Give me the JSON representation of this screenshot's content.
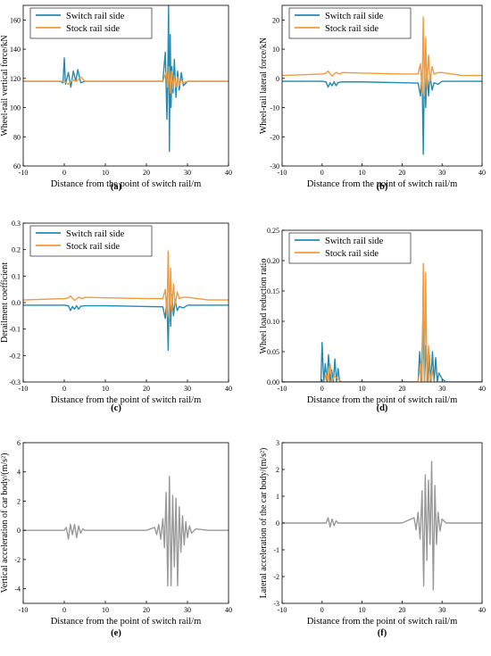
{
  "chart_data": [
    {
      "id": "a",
      "panel_label": "(a)",
      "type": "line",
      "xlabel": "Distance from the point of switch rail/m",
      "ylabel": "Wheel-rail vertical force/kN",
      "xlim": [
        -10,
        40
      ],
      "ylim": [
        60,
        170
      ],
      "xticks": [
        -10,
        0,
        10,
        20,
        30,
        40
      ],
      "yticks": [
        60,
        80,
        100,
        120,
        140,
        160
      ],
      "ytick_labels": [
        "60",
        "80",
        "100",
        "120",
        "140",
        "160"
      ],
      "legend": "top-left",
      "series": [
        {
          "name": "Switch rail side",
          "color": "#1f8bb5",
          "x": [
            -10,
            -1,
            -0.3,
            0,
            0.3,
            1,
            1.6,
            2.2,
            2.8,
            3.3,
            4,
            5,
            10,
            20,
            24,
            24.6,
            25,
            25.2,
            25.4,
            25.6,
            25.8,
            26,
            26.2,
            26.5,
            26.8,
            27.2,
            27.6,
            28,
            28.5,
            29,
            30,
            35,
            40
          ],
          "y": [
            118,
            118,
            117,
            134,
            116,
            124,
            114,
            125,
            118,
            126,
            117,
            118,
            118,
            118,
            118,
            138,
            92,
            120,
            170,
            70,
            150,
            100,
            128,
            110,
            133,
            107,
            125,
            112,
            124,
            115,
            118,
            118,
            118
          ]
        },
        {
          "name": "Stock rail side",
          "color": "#f39a3a",
          "x": [
            -10,
            0,
            1,
            2,
            3,
            4,
            5,
            10,
            20,
            24,
            24.8,
            25.2,
            25.5,
            25.8,
            26.1,
            26.4,
            26.8,
            27.2,
            27.6,
            28,
            28.5,
            29,
            30,
            35,
            40
          ],
          "y": [
            118,
            118,
            116,
            119,
            118,
            121,
            118,
            118,
            118,
            118,
            124,
            114,
            128,
            110,
            125,
            113,
            122,
            114,
            121,
            115,
            119,
            117,
            118,
            118,
            118
          ]
        }
      ]
    },
    {
      "id": "b",
      "panel_label": "(b)",
      "type": "line",
      "xlabel": "Distance from the point of switch rail/m",
      "ylabel": "Wheel-rail lateral force/kN",
      "xlim": [
        -10,
        40
      ],
      "ylim": [
        -30,
        25
      ],
      "xticks": [
        -10,
        0,
        10,
        20,
        30,
        40
      ],
      "yticks": [
        -30,
        -20,
        -10,
        0,
        10,
        20
      ],
      "ytick_labels": [
        "-30",
        "-20",
        "-10",
        "0",
        "10",
        "20"
      ],
      "legend": "top-left",
      "series": [
        {
          "name": "Switch rail side",
          "color": "#1f8bb5",
          "x": [
            -10,
            0,
            1,
            1.5,
            2,
            2.5,
            3,
            3.5,
            4,
            5,
            10,
            20,
            24,
            24.6,
            25,
            25.3,
            25.6,
            25.9,
            26.2,
            26.6,
            27,
            27.5,
            28,
            29,
            30,
            35,
            40
          ],
          "y": [
            -1,
            -1,
            -1.2,
            -3,
            -1.5,
            -2.5,
            -1.2,
            -2.5,
            -1.4,
            -1.2,
            -1.2,
            -1.5,
            -1.6,
            -6,
            2,
            -26,
            6,
            -10,
            3,
            -6,
            1,
            -4,
            -1.5,
            -2,
            -1,
            -1,
            -1
          ]
        },
        {
          "name": "Stock rail side",
          "color": "#f39a3a",
          "x": [
            -10,
            0,
            1,
            1.5,
            2,
            2.5,
            3.5,
            4.5,
            5,
            10,
            20,
            24,
            24.6,
            25,
            25.3,
            25.6,
            25.9,
            26.2,
            26.6,
            27,
            27.5,
            28,
            29,
            30,
            35,
            40
          ],
          "y": [
            1,
            1.5,
            1.8,
            2.5,
            1.6,
            0.8,
            2,
            1.5,
            2,
            1.8,
            1.5,
            1.5,
            5,
            -5,
            21,
            -6,
            14,
            -3,
            8,
            -1,
            4,
            1.5,
            2,
            2,
            1,
            1
          ]
        }
      ]
    },
    {
      "id": "c",
      "panel_label": "(c)",
      "type": "line",
      "xlabel": "Distance from the point of switch rail/m",
      "ylabel": "Derailment coefficient",
      "xlim": [
        -10,
        40
      ],
      "ylim": [
        -0.3,
        0.3
      ],
      "xticks": [
        -10,
        0,
        10,
        20,
        30,
        40
      ],
      "yticks": [
        -0.3,
        -0.2,
        -0.1,
        0,
        0.1,
        0.2,
        0.3
      ],
      "ytick_labels": [
        "-0.3",
        "-0.2",
        "-0.1",
        "0.0",
        "0.1",
        "0.2",
        "0.3"
      ],
      "legend": "top-left",
      "series": [
        {
          "name": "Switch rail side",
          "color": "#1f8bb5",
          "x": [
            -10,
            0,
            1,
            1.5,
            2,
            2.5,
            3,
            3.5,
            4,
            5,
            10,
            20,
            24,
            24.6,
            25,
            25.3,
            25.6,
            25.9,
            26.2,
            26.6,
            27,
            27.5,
            28,
            29,
            30,
            35,
            40
          ],
          "y": [
            -0.01,
            -0.01,
            -0.012,
            -0.03,
            -0.015,
            -0.025,
            -0.012,
            -0.025,
            -0.014,
            -0.012,
            -0.012,
            -0.015,
            -0.016,
            -0.06,
            0.02,
            -0.18,
            0.05,
            -0.09,
            0.03,
            -0.05,
            0.01,
            -0.03,
            -0.015,
            -0.02,
            -0.01,
            -0.01,
            -0.01
          ]
        },
        {
          "name": "Stock rail side",
          "color": "#f39a3a",
          "x": [
            -10,
            0,
            1,
            1.5,
            2,
            2.5,
            3.5,
            4.5,
            5,
            10,
            20,
            24,
            24.6,
            25,
            25.3,
            25.6,
            25.9,
            26.2,
            26.6,
            27,
            27.5,
            28,
            29,
            30,
            35,
            40
          ],
          "y": [
            0.01,
            0.015,
            0.018,
            0.025,
            0.016,
            0.008,
            0.02,
            0.015,
            0.02,
            0.018,
            0.015,
            0.015,
            0.05,
            -0.05,
            0.195,
            -0.06,
            0.13,
            -0.03,
            0.07,
            -0.01,
            0.04,
            0.015,
            0.02,
            0.02,
            0.01,
            0.01
          ]
        }
      ]
    },
    {
      "id": "d",
      "panel_label": "(d)",
      "type": "line",
      "xlabel": "Distance from the point of switch rail/m",
      "ylabel": "Wheel load reduction ratio",
      "xlim": [
        -10,
        40
      ],
      "ylim": [
        0,
        0.25
      ],
      "xticks": [
        -10,
        0,
        10,
        20,
        30,
        40
      ],
      "yticks": [
        0,
        0.05,
        0.1,
        0.15,
        0.2,
        0.25
      ],
      "ytick_labels": [
        "0.00",
        "0.05",
        "0.10",
        "0.15",
        "0.20",
        "0.25"
      ],
      "legend": "top-left",
      "series": [
        {
          "name": "Switch rail side",
          "color": "#1f8bb5",
          "x": [
            -10,
            -0.3,
            0,
            0.4,
            0.8,
            1.2,
            1.6,
            2,
            2.4,
            2.8,
            3.2,
            3.6,
            4,
            4.4,
            5,
            10,
            20,
            24,
            24.4,
            24.8,
            25.2,
            25.6,
            26,
            26.4,
            26.8,
            27.2,
            27.6,
            28,
            28.4,
            28.8,
            29.2,
            30,
            31,
            35,
            40
          ],
          "y": [
            0,
            0,
            0.065,
            0,
            0.03,
            0,
            0.045,
            0,
            0.02,
            0,
            0.038,
            0,
            0.022,
            0,
            0,
            0,
            0,
            0,
            0.05,
            0,
            0.1,
            0,
            0.06,
            0,
            0.045,
            0,
            0.05,
            0,
            0.04,
            0,
            0.015,
            0.005,
            0,
            0,
            0
          ]
        },
        {
          "name": "Stock rail side",
          "color": "#f39a3a",
          "x": [
            -10,
            0.5,
            1,
            1.5,
            2,
            2.5,
            3,
            5,
            10,
            20,
            24,
            24.6,
            25,
            25.3,
            25.6,
            25.9,
            26.2,
            26.6,
            27,
            27.5,
            28,
            30,
            35,
            40
          ],
          "y": [
            0,
            0,
            0.015,
            0,
            0.03,
            0,
            0.01,
            0,
            0,
            0,
            0,
            0.03,
            0,
            0.195,
            0,
            0.18,
            0,
            0.06,
            0,
            0.02,
            0,
            0,
            0,
            0
          ]
        }
      ]
    },
    {
      "id": "e",
      "panel_label": "(e)",
      "type": "line",
      "xlabel": "Distance from the point of switch rail/m",
      "ylabel": "Vertical acceleration of car body/(m/s²)",
      "xlim": [
        -10,
        40
      ],
      "ylim": [
        -5,
        6
      ],
      "xticks": [
        -10,
        0,
        10,
        20,
        30,
        40
      ],
      "yticks": [
        -4,
        -2,
        0,
        2,
        4,
        6
      ],
      "ytick_labels": [
        "-4",
        "-2",
        "0",
        "2",
        "4",
        "6"
      ],
      "series": [
        {
          "color": "#999999",
          "x": [
            -10,
            0,
            0.5,
            1,
            1.5,
            2,
            2.5,
            3,
            3.5,
            4,
            4.5,
            5,
            10,
            20,
            22,
            22.5,
            23,
            23.5,
            24,
            24.4,
            24.8,
            25.2,
            25.6,
            26,
            26.4,
            26.8,
            27.2,
            27.6,
            28,
            28.4,
            28.8,
            29.2,
            29.6,
            30,
            30.5,
            31,
            32,
            35,
            40
          ],
          "y": [
            0,
            0,
            0.2,
            -0.6,
            0.4,
            -0.3,
            0.4,
            -0.5,
            0.3,
            -0.2,
            0.1,
            0,
            0,
            0,
            0.2,
            -0.3,
            0.4,
            -0.6,
            0.8,
            -1.2,
            2.6,
            -3.8,
            3.7,
            -3.8,
            2.4,
            -2.5,
            2.2,
            -3.8,
            1.6,
            -1.5,
            1.0,
            -1.0,
            0.6,
            -0.5,
            0.3,
            -0.2,
            0.1,
            0,
            0
          ]
        }
      ]
    },
    {
      "id": "f",
      "panel_label": "(f)",
      "type": "line",
      "xlabel": "Distance from the point of switch rail/m",
      "ylabel": "Lateral acceleration of the car body/(m/s²)",
      "xlim": [
        -10,
        40
      ],
      "ylim": [
        -3,
        3
      ],
      "xticks": [
        -10,
        0,
        10,
        20,
        30,
        40
      ],
      "yticks": [
        -3,
        -2,
        -1,
        0,
        1,
        2,
        3
      ],
      "ytick_labels": [
        "-3",
        "-2",
        "-1",
        "0",
        "1",
        "2",
        "3"
      ],
      "series": [
        {
          "color": "#999999",
          "x": [
            -10,
            1,
            1.5,
            2,
            2.5,
            3,
            3.5,
            4,
            5,
            10,
            20,
            23,
            23.5,
            24,
            24.5,
            25,
            25.4,
            25.8,
            26.2,
            26.6,
            27,
            27.4,
            27.8,
            28.2,
            28.6,
            29,
            29.5,
            30,
            31,
            35,
            40
          ],
          "y": [
            0,
            0,
            0.2,
            -0.15,
            0.15,
            -0.1,
            0.08,
            0,
            0,
            0,
            0,
            0.2,
            -0.25,
            0.4,
            -0.6,
            1.2,
            -2.35,
            1.8,
            -1.4,
            1.6,
            -0.8,
            2.3,
            -2.5,
            1.4,
            -0.8,
            0.4,
            -0.3,
            0.15,
            0,
            0,
            0
          ]
        }
      ]
    }
  ]
}
